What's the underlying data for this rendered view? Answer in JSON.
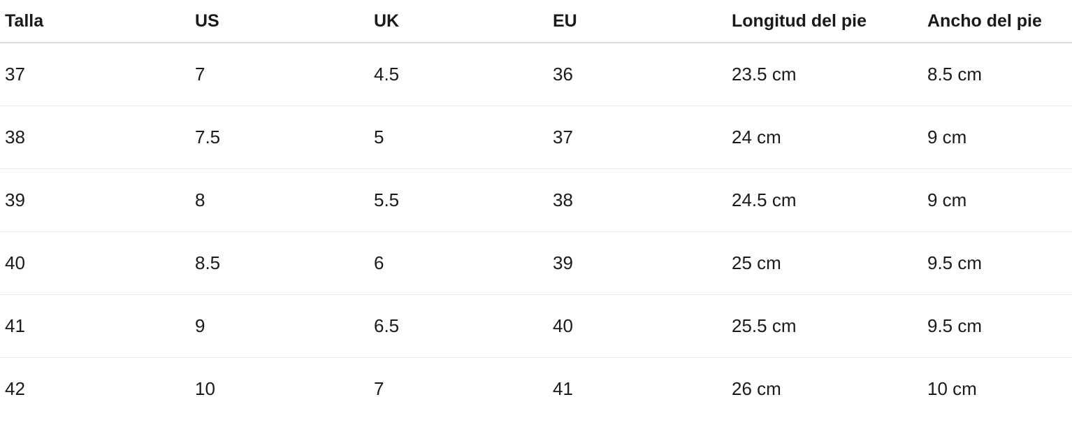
{
  "table": {
    "headers": [
      "Talla",
      "US",
      "UK",
      "EU",
      "Longitud del pie",
      "Ancho del pie"
    ],
    "rows": [
      [
        "37",
        "7",
        "4.5",
        "36",
        "23.5 cm",
        "8.5 cm"
      ],
      [
        "38",
        "7.5",
        "5",
        "37",
        "24 cm",
        "9 cm"
      ],
      [
        "39",
        "8",
        "5.5",
        "38",
        "24.5 cm",
        "9 cm"
      ],
      [
        "40",
        "8.5",
        "6",
        "39",
        "25 cm",
        "9.5 cm"
      ],
      [
        "41",
        "9",
        "6.5",
        "40",
        "25.5 cm",
        "9.5 cm"
      ],
      [
        "42",
        "10",
        "7",
        "41",
        "26 cm",
        "10 cm"
      ]
    ]
  }
}
